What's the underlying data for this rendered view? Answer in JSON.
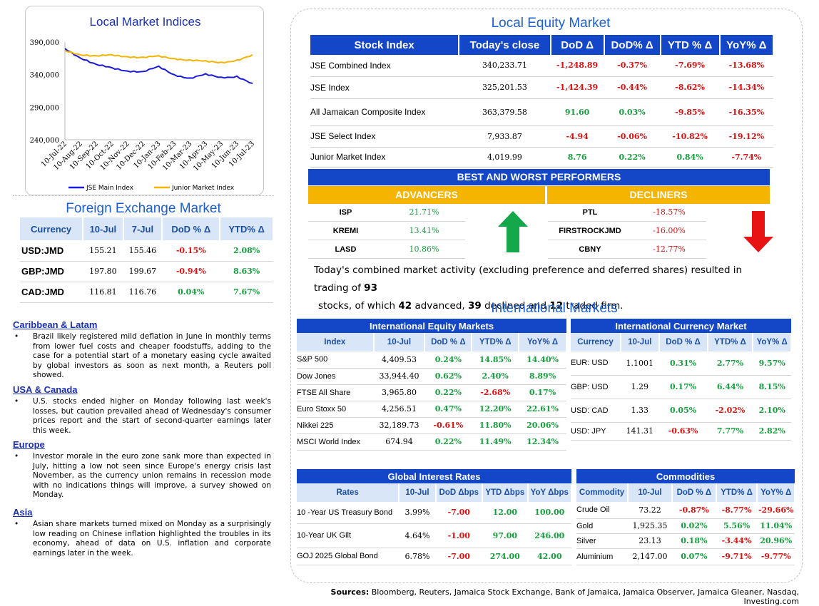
{
  "local_indices": {
    "title": "Local Market Indices",
    "legend_main": "JSE Main Index",
    "legend_junior": "Junior Market Index"
  },
  "chart_data": {
    "type": "line",
    "title": "Local Market Indices",
    "x": [
      "10-Jul-22",
      "10-Aug-22",
      "10-Sep-22",
      "10-Oct-22",
      "10-Nov-22",
      "10-Dec-22",
      "10-Jan-23",
      "10-Feb-23",
      "10-Mar-23",
      "10-Apr-23",
      "10-May-23",
      "10-Jun-23",
      "10-Jul-23"
    ],
    "y_ticks": [
      "390,000",
      "340,000",
      "290,000",
      "240,000"
    ],
    "ylim": [
      240000,
      390000
    ],
    "series": [
      {
        "name": "JSE Main Index",
        "color": "#1a1ad9",
        "values": [
          380000,
          366000,
          355000,
          350000,
          346000,
          344000,
          352000,
          340000,
          334000,
          340000,
          336000,
          337000,
          325000
        ]
      },
      {
        "name": "Junior Market Index",
        "color": "#f4b400",
        "values": [
          377000,
          371000,
          368000,
          370000,
          368000,
          366000,
          368000,
          365000,
          362000,
          360000,
          359000,
          362000,
          369000
        ]
      }
    ]
  },
  "fx": {
    "title": "Foreign Exchange Market",
    "headers": [
      "Currency",
      "10-Jul",
      "7-Jul",
      "DoD % Δ",
      "YTD% Δ"
    ],
    "rows": [
      {
        "c": "USD:JMD",
        "a": "155.21",
        "b": "155.46",
        "d": "-0.15%",
        "y": "2.08%"
      },
      {
        "c": "GBP:JMD",
        "a": "197.80",
        "b": "199.67",
        "d": "-0.94%",
        "y": "8.63%"
      },
      {
        "c": "CAD:JMD",
        "a": "116.81",
        "b": "116.76",
        "d": "0.04%",
        "y": "7.67%"
      }
    ]
  },
  "news": [
    {
      "h": "Caribbean & Latam",
      "t": "Brazil likely registered mild deflation in June in monthly terms from lower fuel costs and cheaper foodstuffs, adding to the case for a potential start of a monetary easing cycle awaited by global investors as soon as next month, a Reuters poll showed."
    },
    {
      "h": "USA & Canada",
      "t": "U.S. stocks ended higher on Monday following last week's losses, but caution prevailed ahead of Wednesday's consumer prices report and the start of second-quarter earnings later this week."
    },
    {
      "h": "Europe",
      "t": "Investor morale in the euro zone sank more than expected in July, hitting a low not seen since Europe's energy crisis last November, as the currency union remains in recession mode with no indications things will improve, a survey showed on Monday."
    },
    {
      "h": "Asia",
      "t": "Asian share markets turned mixed on Monday as a surprisingly low reading on Chinese inflation highlighted the troubles in its economy, ahead of data on U.S. inflation and corporate earnings later in the week."
    }
  ],
  "bullet": "•",
  "local_equity": {
    "title": "Local Equity Market",
    "headers": [
      "Stock Index",
      "Today's close",
      "DoD  Δ",
      "DoD% Δ",
      "YTD % Δ",
      "YoY% Δ"
    ],
    "rows": [
      {
        "n": "JSE Combined Index",
        "c": "340,233.71",
        "d": "-1,248.89",
        "p": "-0.37%",
        "y": "-7.69%",
        "o": "-13.68%"
      },
      {
        "n": "JSE Index",
        "c": "325,201.53",
        "d": "-1,424.39",
        "p": "-0.44%",
        "y": "-8.62%",
        "o": "-14.34%"
      },
      {
        "n": "All Jamaican Composite Index",
        "c": "363,379.58",
        "d": "91.60",
        "p": "0.03%",
        "y": "-9.85%",
        "o": "-16.35%"
      },
      {
        "n": "JSE Select Index",
        "c": "7,933.87",
        "d": "-4.94",
        "p": "-0.06%",
        "y": "-10.82%",
        "o": "-19.12%"
      },
      {
        "n": "Junior Market Index",
        "c": "4,019.99",
        "d": "8.76",
        "p": "0.22%",
        "y": "0.84%",
        "o": "-7.74%"
      }
    ]
  },
  "performers": {
    "title": "BEST AND WORST PERFORMERS",
    "adv_label": "ADVANCERS",
    "dec_label": "DECLINERS",
    "advancers": [
      {
        "s": "ISP",
        "v": "21.71%"
      },
      {
        "s": "KREMI",
        "v": "13.41%"
      },
      {
        "s": "LASD",
        "v": "10.86%"
      }
    ],
    "decliners": [
      {
        "s": "PTL",
        "v": "-18.57%"
      },
      {
        "s": "FIRSTROCKJMD",
        "v": "-16.00%"
      },
      {
        "s": "CBNY",
        "v": "-12.77%"
      }
    ]
  },
  "summary": {
    "t1": "Today's combined market activity (excluding preference and deferred shares) resulted in trading of ",
    "total": "93",
    "t2": "stocks, of which ",
    "adv": "42",
    "t3": " advanced, ",
    "dec": "39",
    "t4": " declined and ",
    "firm": "12",
    "t5": " traded firm."
  },
  "intl": {
    "title": "International Markets",
    "equity": {
      "title": "International Equity Markets",
      "headers": [
        "Index",
        "10-Jul",
        "DoD % Δ",
        "YTD% Δ",
        "YoY% Δ"
      ],
      "rows": [
        {
          "n": "S&P 500",
          "v": "4,409.53",
          "d": "0.24%",
          "y": "14.85%",
          "o": "14.40%"
        },
        {
          "n": "Dow Jones",
          "v": "33,944.40",
          "d": "0.62%",
          "y": "2.40%",
          "o": "8.89%"
        },
        {
          "n": "FTSE All Share",
          "v": "3,965.80",
          "d": "0.22%",
          "y": "-2.68%",
          "o": "0.17%"
        },
        {
          "n": "Euro Stoxx 50",
          "v": "4,256.51",
          "d": "0.47%",
          "y": "12.20%",
          "o": "22.61%"
        },
        {
          "n": "Nikkei 225",
          "v": "32,189.73",
          "d": "-0.61%",
          "y": "11.80%",
          "o": "20.06%"
        },
        {
          "n": "MSCI World Index",
          "v": "674.94",
          "d": "0.22%",
          "y": "11.49%",
          "o": "12.34%"
        }
      ]
    },
    "currency": {
      "title": "International Currency Market",
      "headers": [
        "Currency",
        "10-Jul",
        "DoD % Δ",
        "YTD% Δ",
        "YoY% Δ"
      ],
      "rows": [
        {
          "n": "EUR: USD",
          "v": "1.1001",
          "d": "0.31%",
          "y": "2.77%",
          "o": "9.57%"
        },
        {
          "n": "GBP: USD",
          "v": "1.29",
          "d": "0.17%",
          "y": "6.44%",
          "o": "8.15%"
        },
        {
          "n": "USD: CAD",
          "v": "1.33",
          "d": "0.05%",
          "y": "-2.02%",
          "o": "2.10%"
        },
        {
          "n": "USD: JPY",
          "v": "141.31",
          "d": "-0.63%",
          "y": "7.77%",
          "o": "2.82%"
        }
      ]
    },
    "rates": {
      "title": "Global Interest Rates",
      "headers": [
        "Rates",
        "10-Jul",
        "DoD Δbps",
        "YTD Δbps",
        "YoY Δbps"
      ],
      "rows": [
        {
          "n": "10 -Year US Treasury Bond",
          "v": "3.99%",
          "d": "-7.00",
          "y": "12.00",
          "o": "100.00"
        },
        {
          "n": "10-Year UK Gilt",
          "v": "4.64%",
          "d": "-1.00",
          "y": "97.00",
          "o": "246.00"
        },
        {
          "n": "GOJ 2025 Global Bond",
          "v": "6.78%",
          "d": "-7.00",
          "y": "274.00",
          "o": "42.00"
        }
      ]
    },
    "commodities": {
      "title": "Commodities",
      "headers": [
        "Commodity",
        "10-Jul",
        "DoD % Δ",
        "YTD% Δ",
        "YoY% Δ"
      ],
      "rows": [
        {
          "n": "Crude Oil",
          "v": "73.22",
          "d": "-0.87%",
          "y": "-8.77%",
          "o": "-29.66%"
        },
        {
          "n": "Gold",
          "v": "1,925.35",
          "d": "0.02%",
          "y": "5.56%",
          "o": "11.04%"
        },
        {
          "n": "Silver",
          "v": "23.13",
          "d": "0.18%",
          "y": "-3.44%",
          "o": "20.96%"
        },
        {
          "n": "Aluminium",
          "v": "2,147.00",
          "d": "0.07%",
          "y": "-9.71%",
          "o": "-9.77%"
        }
      ]
    }
  },
  "sources": {
    "label": "Sources:",
    "text": " Bloomberg, Reuters, Jamaica Stock Exchange, Bank of Jamaica, Jamaica Observer, Jamaica Gleaner, Nasdaq, Investing.com"
  }
}
